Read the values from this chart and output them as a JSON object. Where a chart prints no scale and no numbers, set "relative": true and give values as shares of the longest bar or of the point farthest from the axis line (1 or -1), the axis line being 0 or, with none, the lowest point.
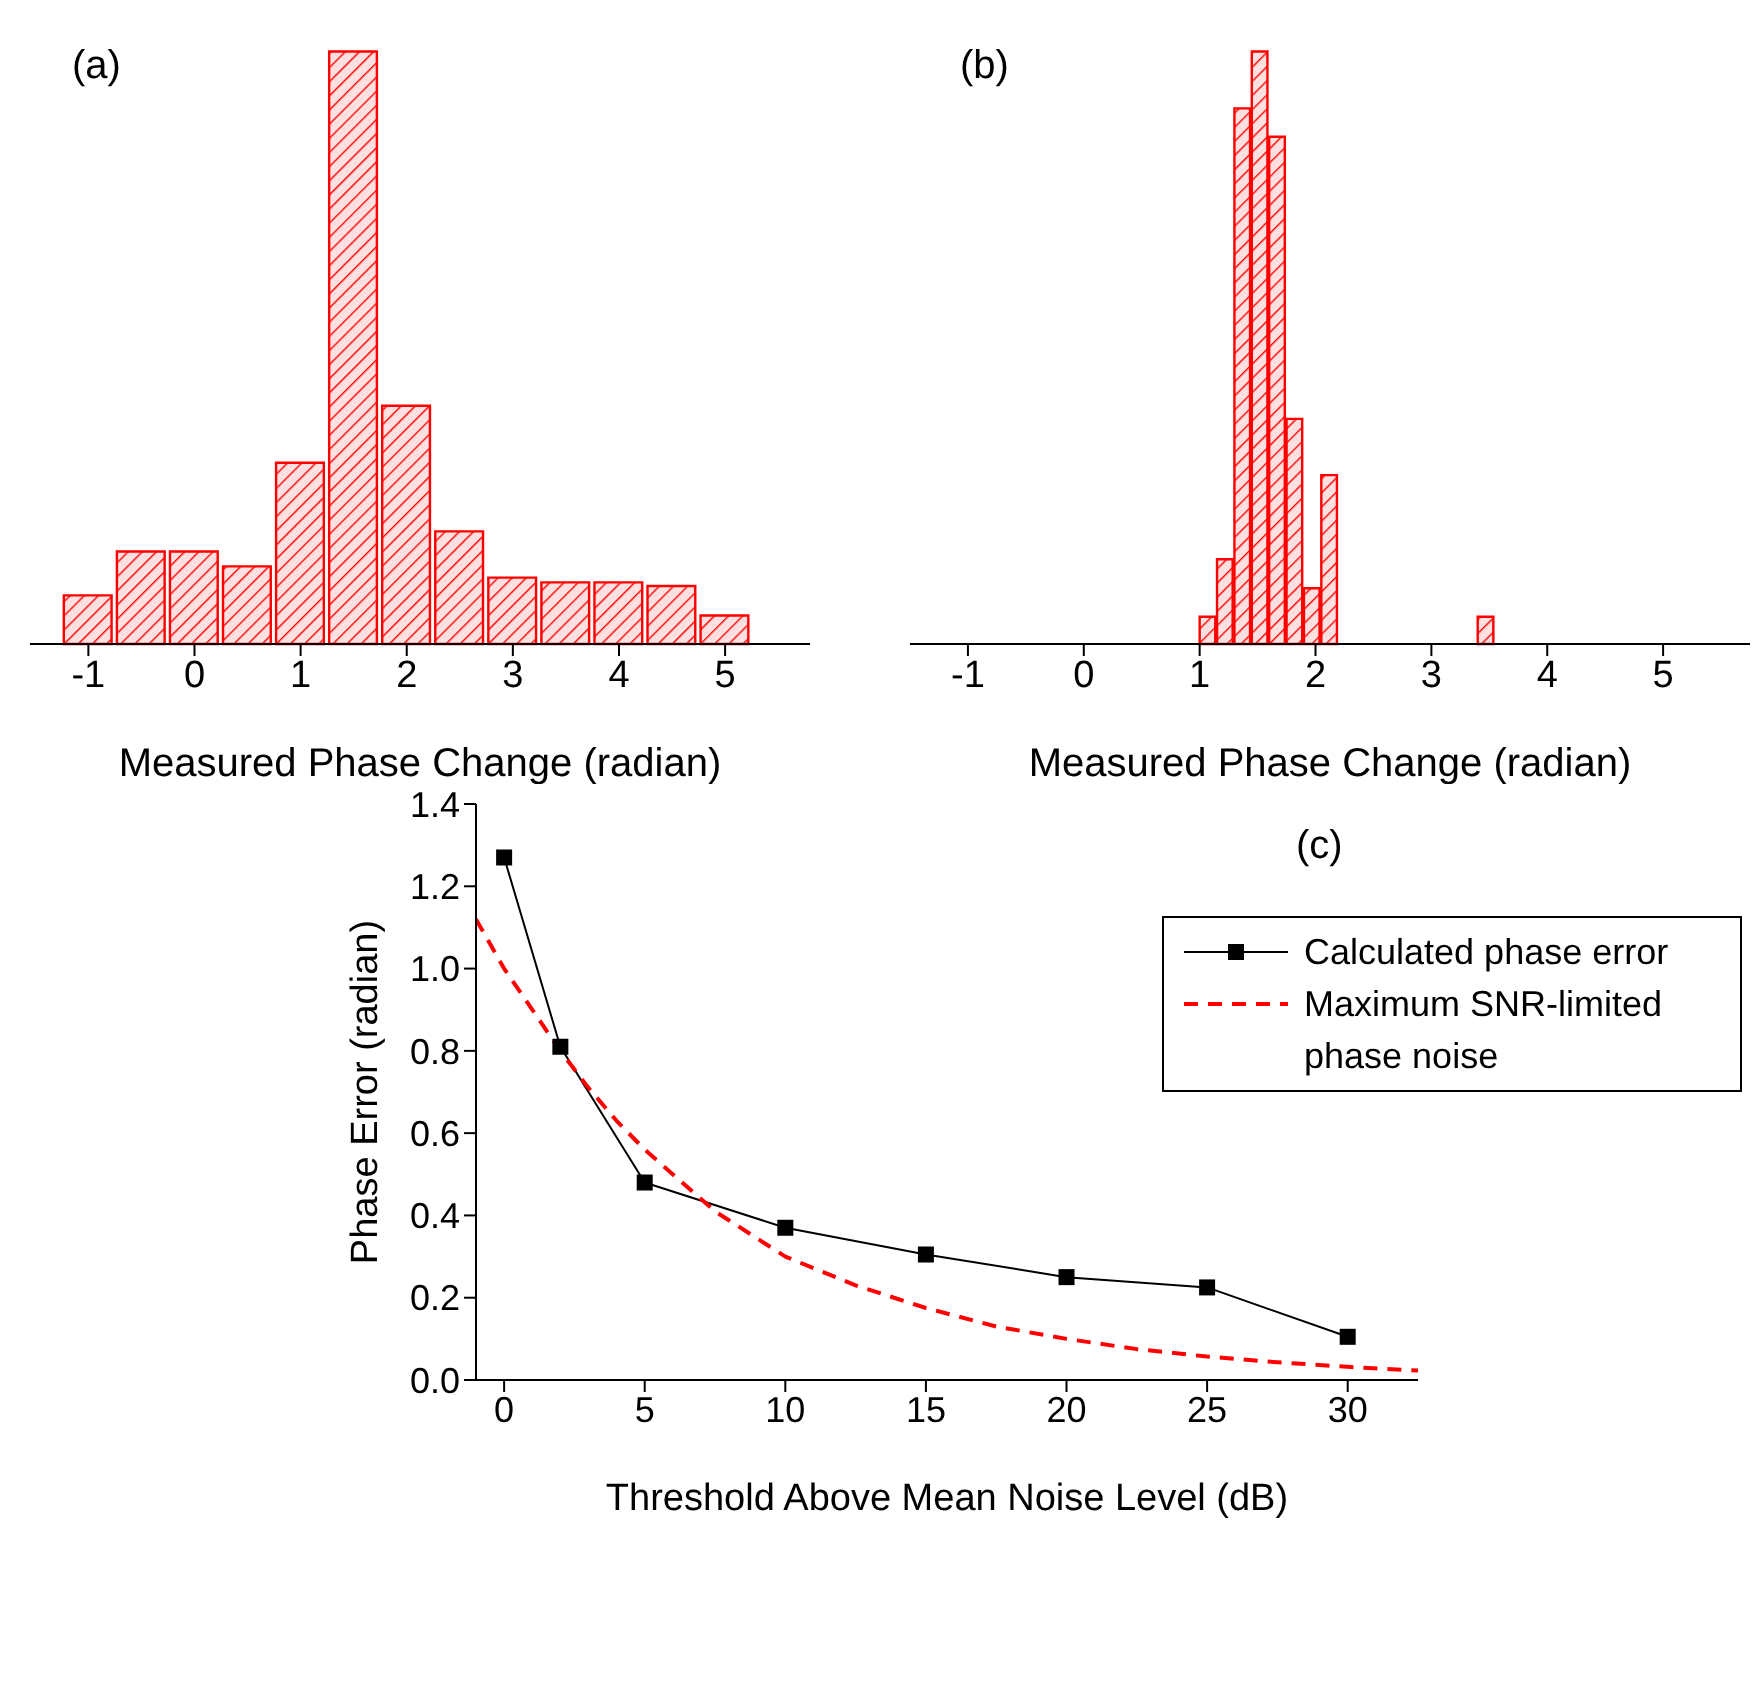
{
  "chart_data": [
    {
      "type": "bar",
      "relative": true,
      "color": "#ff0000",
      "xlabel": "Measured Phase Change (radian)",
      "annotations": [
        "(a)"
      ],
      "tick_labels": "x",
      "x": [
        -1,
        -0.5,
        0,
        0.5,
        1,
        1.5,
        2,
        2.5,
        3,
        3.5,
        4,
        4.5,
        5
      ],
      "values": [
        0.082,
        0.156,
        0.156,
        0.131,
        0.306,
        1,
        0.402,
        0.19,
        0.112,
        0.104,
        0.104,
        0.098,
        0.048
      ],
      "xlim": [
        -1.55,
        5.8
      ],
      "xticks": [
        -1,
        0,
        1,
        2,
        3,
        4,
        5
      ]
    },
    {
      "type": "bar",
      "relative": true,
      "color": "#ff0000",
      "xlabel": "Measured Phase Change (radian)",
      "annotations": [
        "(b)"
      ],
      "tick_labels": "x",
      "x": [
        1.075,
        1.225,
        1.375,
        1.525,
        1.675,
        1.825,
        1.975,
        2.125,
        3.475
      ],
      "values": [
        0.046,
        0.143,
        0.904,
        1,
        0.856,
        0.38,
        0.094,
        0.285,
        0.046
      ],
      "xlim": [
        -1.5,
        5.75
      ],
      "xticks": [
        -1,
        0,
        1,
        2,
        3,
        4,
        5
      ]
    },
    {
      "type": "line",
      "xlabel": "Threshold Above Mean Noise Level (dB)",
      "ylabel": "Phase Error (radian)",
      "annotations": [
        "(c)"
      ],
      "legend": "top right",
      "xlim": [
        -1,
        32.5
      ],
      "xticks": [
        0,
        5,
        10,
        15,
        20,
        25,
        30
      ],
      "ylim": [
        0,
        1.4
      ],
      "yticks": [
        {
          "value": 0,
          "label": "0.0"
        },
        {
          "value": 0.2,
          "label": "0.2"
        },
        {
          "value": 0.4,
          "label": "0.4"
        },
        {
          "value": 0.6,
          "label": "0.6"
        },
        {
          "value": 0.8,
          "label": "0.8"
        },
        {
          "value": 1.0,
          "label": "1.0"
        },
        {
          "value": 1.2,
          "label": "1.2"
        },
        {
          "value": 1.4,
          "label": "1.4"
        }
      ],
      "series": [
        {
          "name": "Calculated phase error",
          "color": "#000000",
          "marker": "square",
          "line_style": "solid",
          "x": [
            0,
            2,
            5,
            10,
            15,
            20,
            25,
            30
          ],
          "values": [
            1.27,
            0.81,
            0.48,
            0.37,
            0.305,
            0.25,
            0.225,
            0.105
          ]
        },
        {
          "name": "Maximum SNR-limited phase noise",
          "color": "#ff0000",
          "marker": "none",
          "line_style": "dashed",
          "x": [
            -1,
            0,
            1,
            2,
            3,
            4,
            5,
            7.5,
            10,
            12.5,
            15,
            17.5,
            20,
            22.5,
            25,
            27.5,
            30,
            32.5
          ],
          "values": [
            1.12,
            1.0,
            0.9,
            0.8,
            0.71,
            0.63,
            0.56,
            0.41,
            0.3,
            0.23,
            0.175,
            0.13,
            0.1,
            0.075,
            0.057,
            0.043,
            0.032,
            0.023
          ]
        }
      ]
    }
  ]
}
